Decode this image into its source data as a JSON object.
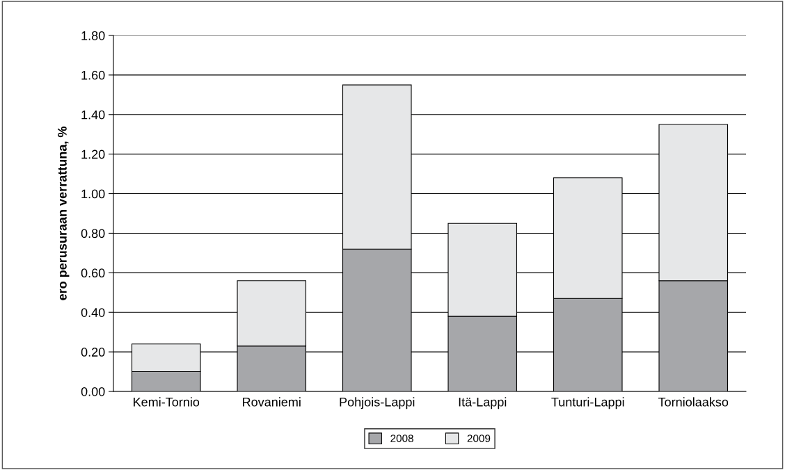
{
  "chart_data": {
    "type": "bar",
    "stacked": true,
    "ylabel": "ero perusuraan verrattuna, %",
    "categories": [
      "Kemi-Tornio",
      "Rovaniemi",
      "Pohjois-Lappi",
      "Itä-Lappi",
      "Tunturi-Lappi",
      "Torniolaakso"
    ],
    "series": [
      {
        "name": "2008",
        "color": "#a6a7aa",
        "values": [
          0.1,
          0.23,
          0.72,
          0.38,
          0.47,
          0.56
        ]
      },
      {
        "name": "2009",
        "color": "#e6e7e8",
        "values": [
          0.14,
          0.33,
          0.83,
          0.47,
          0.61,
          0.79
        ]
      }
    ],
    "ylim": [
      0,
      1.8
    ],
    "yticks": [
      {
        "value": 0,
        "label": "0.00"
      },
      {
        "value": 0.2,
        "label": "0.20"
      },
      {
        "value": 0.4,
        "label": "0.40"
      },
      {
        "value": 0.6,
        "label": "0.60"
      },
      {
        "value": 0.8,
        "label": "0.80"
      },
      {
        "value": 1.0,
        "label": "1.00"
      },
      {
        "value": 1.2,
        "label": "1.20"
      },
      {
        "value": 1.4,
        "label": "1.40"
      },
      {
        "value": 1.6,
        "label": "1.60"
      },
      {
        "value": 1.8,
        "label": "1.80"
      }
    ],
    "grid": "y",
    "legend": "bottom"
  }
}
